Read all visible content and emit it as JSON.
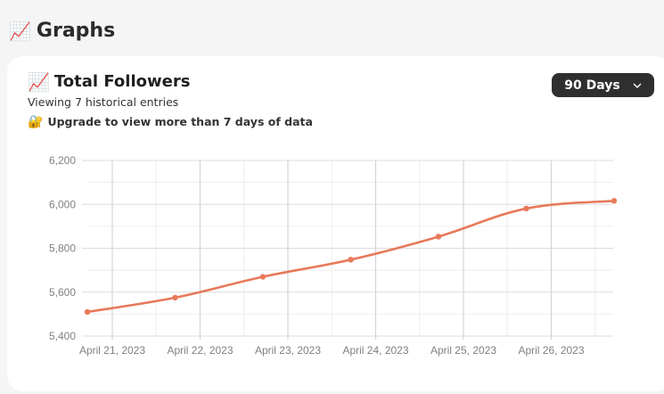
{
  "section": {
    "title": "Graphs",
    "icon": "chart-increasing-icon"
  },
  "card": {
    "title": "Total Followers",
    "icon": "chart-increasing-icon",
    "subtitle": "Viewing 7 historical entries",
    "upgrade_text": "Upgrade to view more than 7 days of data",
    "upgrade_icon": "lock-icon"
  },
  "range_select": {
    "value": "90 Days"
  },
  "chart_data": {
    "type": "line",
    "title": "",
    "xlabel": "",
    "ylabel": "",
    "ylim": [
      5400,
      6200
    ],
    "yticks": [
      5400,
      5600,
      5800,
      6000,
      6200
    ],
    "ytick_labels": [
      "5,400",
      "5,600",
      "5,800",
      "6,000",
      "6,200"
    ],
    "x_tick_labels": [
      "April 21, 2023",
      "April 22, 2023",
      "April 23, 2023",
      "April 24, 2023",
      "April 25, 2023",
      "April 26, 2023"
    ],
    "x_tick_positions": [
      0,
      1,
      2,
      3,
      4,
      5
    ],
    "xlim": [
      0,
      6
    ],
    "grid": true,
    "series": [
      {
        "color": "#e8795a",
        "x": [
          0,
          1,
          2,
          3,
          4,
          5,
          6
        ],
        "values": [
          5510,
          5575,
          5670,
          5748,
          5853,
          5981,
          6016
        ]
      }
    ]
  }
}
